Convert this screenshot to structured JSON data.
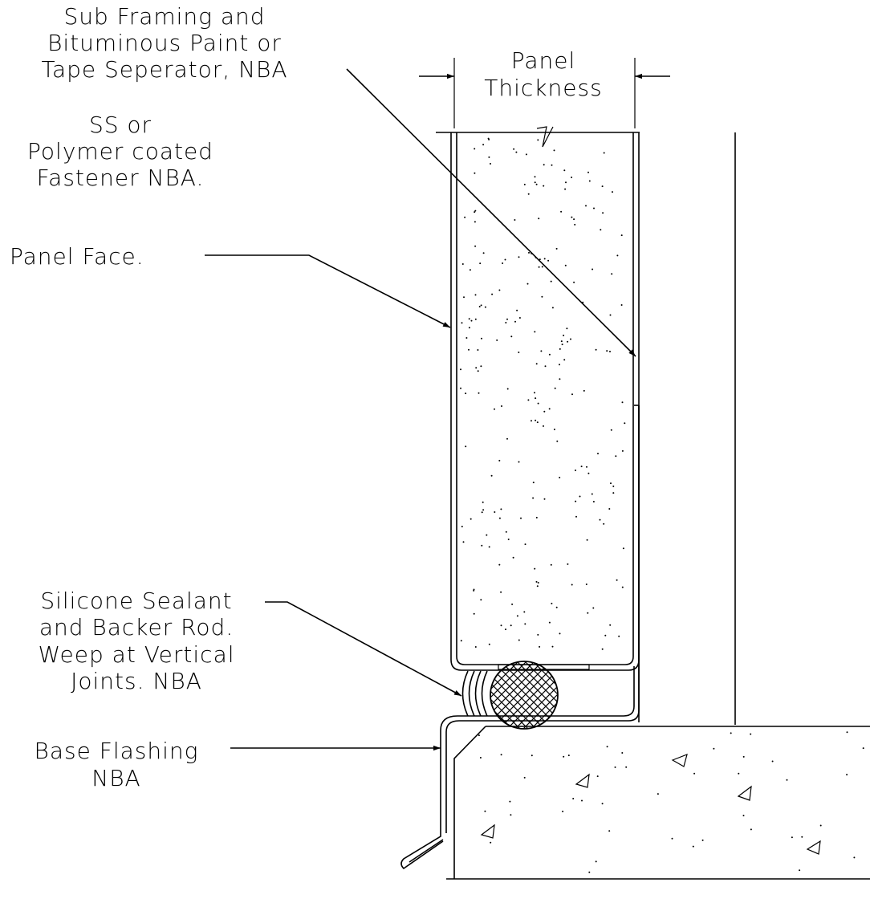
{
  "labels": {
    "sub_framing": [
      "Sub Framing and",
      "Bituminous Paint or",
      "Tape Seperator, NBA"
    ],
    "panel_thickness": [
      "Panel",
      "Thickness"
    ],
    "fastener": [
      "SS  or",
      "Polymer coated",
      "Fastener NBA."
    ],
    "panel_face": "Panel Face.",
    "sealant": [
      "Silicone Sealant",
      "and Backer Rod.",
      "Weep at Vertical",
      "Joints. NBA"
    ],
    "base_flashing": [
      "Base Flashing",
      "NBA"
    ]
  }
}
